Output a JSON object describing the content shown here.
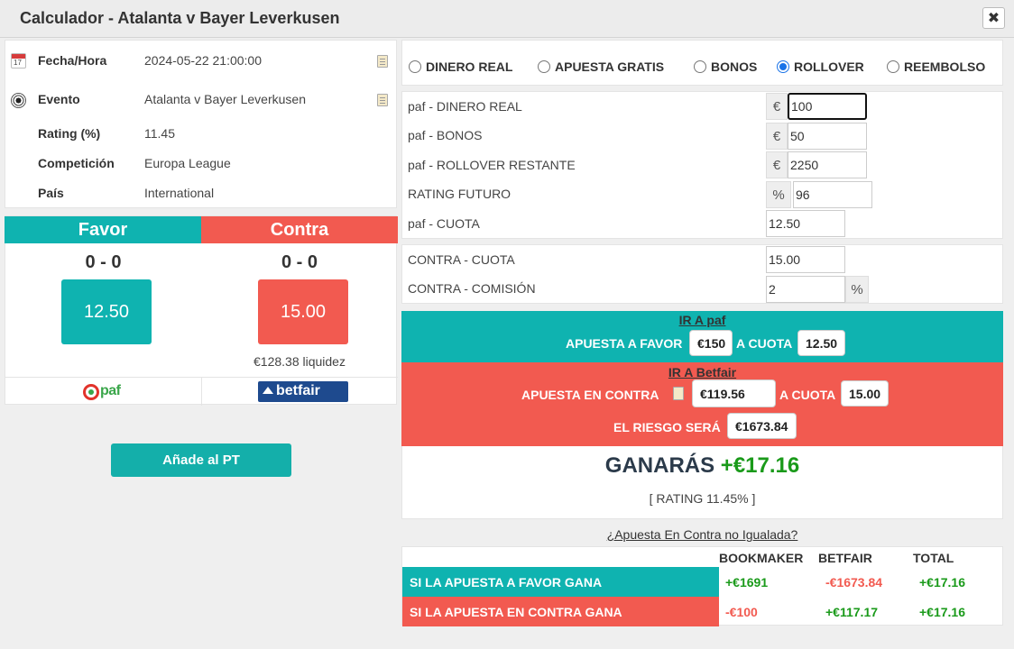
{
  "window": {
    "title": "Calculador - Atalanta v Bayer Leverkusen",
    "close_symbol": "✖"
  },
  "event_info": [
    {
      "label": "Fecha/Hora",
      "value": "2024-05-22 21:00:00",
      "icon": "calendar-icon"
    },
    {
      "label": "Evento",
      "value": "Atalanta v Bayer Leverkusen",
      "icon": "soccer-ball-icon"
    },
    {
      "label": "Rating (%)",
      "value": "11.45"
    },
    {
      "label": "Competición",
      "value": "Europa League"
    },
    {
      "label": "País",
      "value": "International"
    }
  ],
  "favor": {
    "header": "Favor",
    "score": "0 - 0",
    "odds": "12.50",
    "bookmaker_logo": "paf"
  },
  "contra": {
    "header": "Contra",
    "score": "0 - 0",
    "odds": "15.00",
    "liquidity": "€128.38 liquidez",
    "exchange_logo": "betfair"
  },
  "add_button": "Añade al PT",
  "bet_types": [
    "DINERO REAL",
    "APUESTA GRATIS",
    "BONOS",
    "ROLLOVER",
    "REEMBOLSO"
  ],
  "bet_type_selected": "ROLLOVER",
  "form": {
    "rows": [
      {
        "label": "paf - DINERO REAL",
        "addon": "€",
        "value": "100"
      },
      {
        "label": "paf - BONOS",
        "addon": "€",
        "value": "50"
      },
      {
        "label": "paf - ROLLOVER RESTANTE",
        "addon": "€",
        "value": "2250"
      },
      {
        "label": "RATING FUTURO",
        "addon": "%",
        "value": "96"
      },
      {
        "label": "paf - CUOTA",
        "value": "12.50"
      }
    ],
    "contra_rows": [
      {
        "label": "CONTRA - CUOTA",
        "value": "15.00"
      },
      {
        "label": "CONTRA - COMISIÓN",
        "value": "2",
        "addon": "%"
      }
    ]
  },
  "favor_bet": {
    "link": "IR A paf",
    "label": "APUESTA A FAVOR",
    "stake": "€150",
    "at_odds_label": "A CUOTA",
    "odds": "12.50"
  },
  "contra_bet": {
    "link": "IR A Betfair",
    "label": "APUESTA EN CONTRA",
    "stake": "€119.56",
    "at_odds_label": "A CUOTA",
    "odds": "15.00",
    "risk_label": "EL RIESGO SERÁ",
    "risk": "€1673.84"
  },
  "profit": {
    "label": "GANARÁS",
    "value": "+€17.16",
    "rating": "[ RATING 11.45% ]"
  },
  "unmatched_link": "¿Apuesta En Contra no Igualada?",
  "outcomes": {
    "headers": [
      "BOOKMAKER",
      "BETFAIR",
      "TOTAL"
    ],
    "rows": [
      {
        "label": "SI LA APUESTA A FAVOR GANA",
        "bookmaker": "+€1691",
        "betfair": "-€1673.84",
        "total": "+€17.16"
      },
      {
        "label": "SI LA APUESTA EN CONTRA GANA",
        "bookmaker": "-€100",
        "betfair": "+€117.17",
        "total": "+€17.16"
      }
    ]
  },
  "colors": {
    "teal": "#0fb3b0",
    "red": "#f25a50",
    "positive": "#1a9a1a",
    "negative": "#f25a50"
  }
}
